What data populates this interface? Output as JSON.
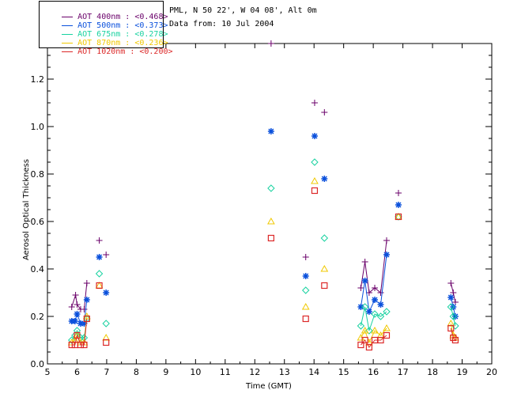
{
  "info": {
    "site": "PML, N 50 22', W 04 08', Alt 0m",
    "date": "Data from: 10 Jul 2004"
  },
  "chart_data": {
    "type": "scatter",
    "title": "",
    "xlabel": "Time (GMT)",
    "ylabel": "Aerosol Optical Thickness",
    "xlim": [
      5,
      20
    ],
    "ylim": [
      0,
      1.35
    ],
    "xticks": [
      5,
      6,
      7,
      8,
      9,
      10,
      11,
      12,
      13,
      14,
      15,
      16,
      17,
      18,
      19,
      20
    ],
    "yticks": [
      0.0,
      0.2,
      0.4,
      0.6,
      0.8,
      1.0,
      1.2
    ],
    "ytick_labels": [
      "0.0",
      "0.2",
      "0.4",
      "0.6",
      "0.8",
      "1.0",
      "1.2"
    ],
    "legend_position": "top-left",
    "series": [
      {
        "name": "AOT 400nm : <0.468>",
        "color": "#6a006a",
        "marker": "plus",
        "x": [
          5.82,
          5.95,
          6.0,
          6.12,
          6.24,
          6.33,
          6.75,
          6.98,
          12.55,
          13.72,
          14.02,
          14.35,
          15.58,
          15.72,
          15.86,
          16.05,
          16.25,
          16.45,
          16.85,
          18.62,
          18.7,
          18.77
        ],
        "y": [
          0.24,
          0.29,
          0.25,
          0.23,
          0.23,
          0.34,
          0.52,
          0.46,
          1.35,
          0.45,
          1.1,
          1.06,
          0.32,
          0.43,
          0.3,
          0.32,
          0.3,
          0.52,
          0.72,
          0.34,
          0.3,
          0.26
        ],
        "segments": [
          [
            0,
            5
          ],
          [
            12,
            17
          ],
          [
            19,
            21
          ]
        ]
      },
      {
        "name": "AOT 500nm : <0.373>",
        "color": "#0a50dc",
        "marker": "star",
        "x": [
          5.82,
          5.93,
          6.0,
          6.12,
          6.24,
          6.33,
          6.75,
          6.98,
          12.55,
          13.72,
          14.02,
          14.35,
          15.58,
          15.72,
          15.86,
          16.05,
          16.25,
          16.45,
          16.85,
          18.62,
          18.7,
          18.77
        ],
        "y": [
          0.18,
          0.18,
          0.21,
          0.17,
          0.17,
          0.27,
          0.45,
          0.3,
          0.98,
          0.37,
          0.96,
          0.78,
          0.24,
          0.35,
          0.22,
          0.27,
          0.25,
          0.46,
          0.67,
          0.28,
          0.24,
          0.2
        ],
        "segments": [
          [
            0,
            5
          ],
          [
            12,
            17
          ],
          [
            19,
            21
          ]
        ]
      },
      {
        "name": "AOT 675nm : <0.278>",
        "color": "#18d2a0",
        "marker": "diamond",
        "x": [
          5.82,
          5.93,
          6.0,
          6.12,
          6.24,
          6.33,
          6.75,
          6.98,
          12.55,
          13.72,
          14.02,
          14.35,
          15.58,
          15.72,
          15.86,
          16.05,
          16.25,
          16.45,
          16.85,
          18.62,
          18.7,
          18.77
        ],
        "y": [
          0.1,
          0.12,
          0.14,
          0.11,
          0.11,
          0.19,
          0.38,
          0.17,
          0.74,
          0.31,
          0.85,
          0.53,
          0.16,
          0.24,
          0.14,
          0.21,
          0.2,
          0.22,
          0.62,
          0.24,
          0.2,
          0.16
        ],
        "segments": [
          [
            0,
            5
          ],
          [
            12,
            17
          ],
          [
            19,
            21
          ]
        ]
      },
      {
        "name": "AOT 870nm : <0.236>",
        "color": "#f0c800",
        "marker": "triangle",
        "x": [
          5.82,
          5.93,
          6.0,
          6.12,
          6.24,
          6.33,
          6.75,
          6.98,
          12.55,
          13.72,
          14.02,
          14.35,
          15.58,
          15.72,
          15.86,
          16.05,
          16.25,
          16.45,
          16.85,
          18.62,
          18.7,
          18.77
        ],
        "y": [
          0.09,
          0.1,
          0.12,
          0.09,
          0.09,
          0.2,
          0.33,
          0.11,
          0.6,
          0.24,
          0.77,
          0.4,
          0.11,
          0.14,
          0.09,
          0.14,
          0.12,
          0.15,
          0.62,
          0.17,
          0.12,
          0.11
        ],
        "segments": [
          [
            0,
            5
          ],
          [
            12,
            17
          ],
          [
            19,
            21
          ]
        ]
      },
      {
        "name": "AOT 1020nm : <0.200>",
        "color": "#dc2828",
        "marker": "square",
        "x": [
          5.82,
          5.93,
          6.0,
          6.12,
          6.24,
          6.33,
          6.75,
          6.98,
          12.55,
          13.72,
          14.02,
          14.35,
          15.58,
          15.72,
          15.86,
          16.05,
          16.25,
          16.45,
          16.85,
          18.62,
          18.7,
          18.77
        ],
        "y": [
          0.08,
          0.08,
          0.12,
          0.08,
          0.08,
          0.19,
          0.33,
          0.09,
          0.53,
          0.19,
          0.73,
          0.33,
          0.08,
          0.1,
          0.07,
          0.1,
          0.1,
          0.12,
          0.62,
          0.15,
          0.11,
          0.1
        ],
        "segments": [
          [
            0,
            5
          ],
          [
            12,
            17
          ],
          [
            19,
            21
          ]
        ]
      }
    ]
  }
}
